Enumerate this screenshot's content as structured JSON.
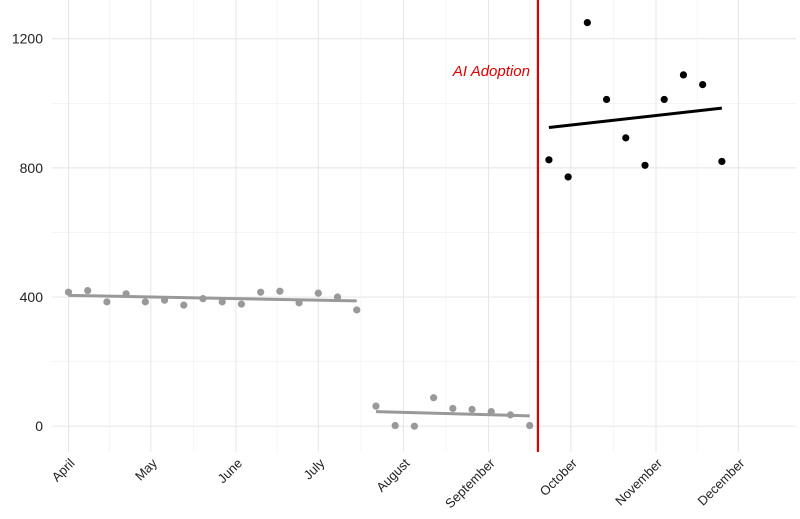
{
  "chart_data": {
    "type": "scatter",
    "title": "",
    "xlabel": "",
    "ylabel": "",
    "ylim": [
      -80,
      1320
    ],
    "yticks": [
      0,
      400,
      800,
      1200
    ],
    "xlim": [
      "2023-03-26",
      "2023-12-22"
    ],
    "xticks": [
      {
        "label": "April",
        "date": "2023-04-01"
      },
      {
        "label": "May",
        "date": "2023-05-01"
      },
      {
        "label": "June",
        "date": "2023-06-01"
      },
      {
        "label": "July",
        "date": "2023-07-01"
      },
      {
        "label": "August",
        "date": "2023-08-01"
      },
      {
        "label": "September",
        "date": "2023-09-01"
      },
      {
        "label": "October",
        "date": "2023-10-01"
      },
      {
        "label": "November",
        "date": "2023-11-01"
      },
      {
        "label": "December",
        "date": "2023-12-01"
      }
    ],
    "grid": true,
    "series": [
      {
        "color": "#999999",
        "points": [
          {
            "x": "2023-04-01",
            "y": 415
          },
          {
            "x": "2023-04-08",
            "y": 420
          },
          {
            "x": "2023-04-15",
            "y": 385
          },
          {
            "x": "2023-04-22",
            "y": 410
          },
          {
            "x": "2023-04-29",
            "y": 385
          },
          {
            "x": "2023-05-06",
            "y": 390
          },
          {
            "x": "2023-05-13",
            "y": 375
          },
          {
            "x": "2023-05-20",
            "y": 395
          },
          {
            "x": "2023-05-27",
            "y": 385
          },
          {
            "x": "2023-06-03",
            "y": 378
          },
          {
            "x": "2023-06-10",
            "y": 415
          },
          {
            "x": "2023-06-17",
            "y": 418
          },
          {
            "x": "2023-06-24",
            "y": 382
          },
          {
            "x": "2023-07-01",
            "y": 412
          },
          {
            "x": "2023-07-08",
            "y": 400
          },
          {
            "x": "2023-07-15",
            "y": 360
          }
        ],
        "trend": [
          {
            "x": "2023-04-01",
            "y": 405
          },
          {
            "x": "2023-07-15",
            "y": 388
          }
        ]
      },
      {
        "color": "#999999",
        "points": [
          {
            "x": "2023-07-22",
            "y": 62
          },
          {
            "x": "2023-07-29",
            "y": 2
          },
          {
            "x": "2023-08-05",
            "y": 0
          },
          {
            "x": "2023-08-12",
            "y": 88
          },
          {
            "x": "2023-08-19",
            "y": 55
          },
          {
            "x": "2023-08-26",
            "y": 52
          },
          {
            "x": "2023-09-02",
            "y": 45
          },
          {
            "x": "2023-09-09",
            "y": 35
          },
          {
            "x": "2023-09-16",
            "y": 2
          }
        ],
        "trend": [
          {
            "x": "2023-07-22",
            "y": 45
          },
          {
            "x": "2023-09-16",
            "y": 32
          }
        ]
      },
      {
        "color": "#000000",
        "points": [
          {
            "x": "2023-09-23",
            "y": 825
          },
          {
            "x": "2023-09-30",
            "y": 772
          },
          {
            "x": "2023-10-07",
            "y": 1250
          },
          {
            "x": "2023-10-14",
            "y": 1012
          },
          {
            "x": "2023-10-21",
            "y": 893
          },
          {
            "x": "2023-10-28",
            "y": 808
          },
          {
            "x": "2023-11-04",
            "y": 1012
          },
          {
            "x": "2023-11-11",
            "y": 1088
          },
          {
            "x": "2023-11-18",
            "y": 1058
          },
          {
            "x": "2023-11-25",
            "y": 820
          }
        ],
        "trend": [
          {
            "x": "2023-09-23",
            "y": 925
          },
          {
            "x": "2023-11-25",
            "y": 985
          }
        ]
      }
    ],
    "annotations": [
      {
        "type": "vline",
        "x": "2023-09-19",
        "color": "#dd0000"
      },
      {
        "type": "text",
        "text": "AI Adoption",
        "x": "2023-09-19",
        "y": 1100,
        "anchor": "end",
        "color": "#dd0000"
      }
    ]
  }
}
